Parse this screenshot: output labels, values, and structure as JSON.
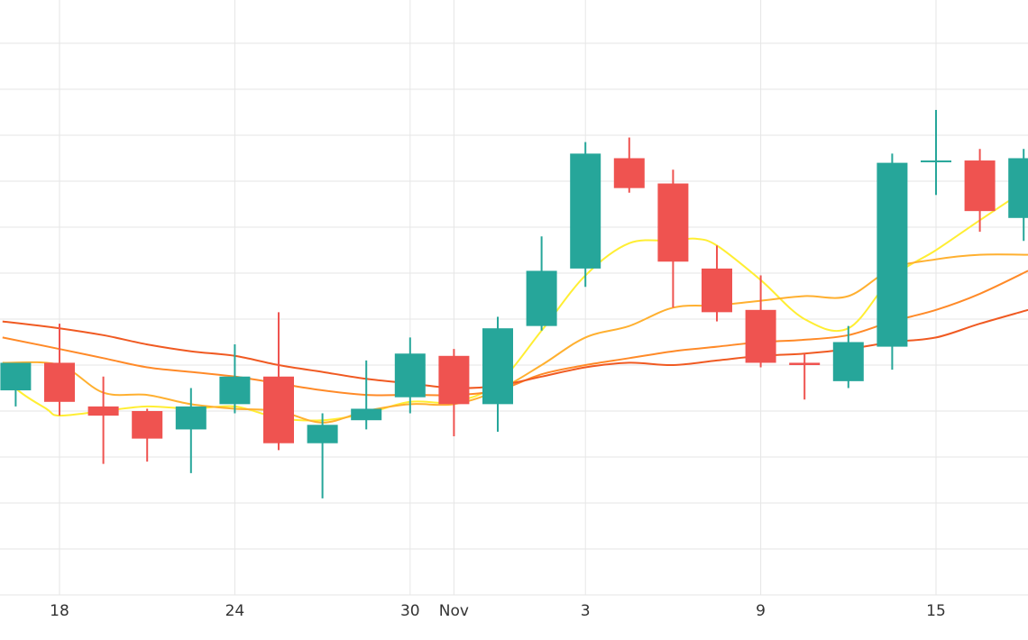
{
  "chart_data": {
    "type": "candlestick",
    "title": "",
    "xlabel": "",
    "ylabel": "",
    "grid": true,
    "colors": {
      "up": "#26a69a",
      "down": "#ef5350",
      "grid": "#e6e6e6",
      "ma": [
        "#ffee33",
        "#ffb030",
        "#ff8a28",
        "#f05a22"
      ]
    },
    "x_range": [
      -1.3,
      22.1
    ],
    "y_range": [
      0,
      13
    ],
    "x_ticks": [
      {
        "pos": 0,
        "label": "18"
      },
      {
        "pos": 4,
        "label": "24"
      },
      {
        "pos": 8,
        "label": "30"
      },
      {
        "pos": 9,
        "label": "Nov"
      },
      {
        "pos": 12,
        "label": "3"
      },
      {
        "pos": 16,
        "label": "9"
      },
      {
        "pos": 20,
        "label": "15"
      }
    ],
    "y_gridlines": [
      0,
      1,
      2,
      3,
      4,
      5,
      6,
      7,
      8,
      9,
      10,
      11,
      12
    ],
    "candles": [
      {
        "i": -1,
        "open": 4.45,
        "high": 5.0,
        "low": 4.1,
        "close": 5.05
      },
      {
        "i": 0,
        "open": 5.05,
        "high": 5.9,
        "low": 3.9,
        "close": 4.2
      },
      {
        "i": 1,
        "open": 4.1,
        "high": 4.75,
        "low": 2.85,
        "close": 3.9
      },
      {
        "i": 2,
        "open": 4.0,
        "high": 4.05,
        "low": 2.9,
        "close": 3.4
      },
      {
        "i": 3,
        "open": 3.6,
        "high": 4.5,
        "low": 2.65,
        "close": 4.1
      },
      {
        "i": 4,
        "open": 4.15,
        "high": 5.45,
        "low": 3.95,
        "close": 4.75
      },
      {
        "i": 5,
        "open": 4.75,
        "high": 6.15,
        "low": 3.15,
        "close": 3.3
      },
      {
        "i": 6,
        "open": 3.3,
        "high": 3.95,
        "low": 2.1,
        "close": 3.7
      },
      {
        "i": 7,
        "open": 3.8,
        "high": 5.1,
        "low": 3.6,
        "close": 4.05
      },
      {
        "i": 8,
        "open": 4.3,
        "high": 5.6,
        "low": 3.95,
        "close": 5.25
      },
      {
        "i": 9,
        "open": 5.2,
        "high": 5.35,
        "low": 3.45,
        "close": 4.15
      },
      {
        "i": 10,
        "open": 4.15,
        "high": 6.05,
        "low": 3.55,
        "close": 5.8
      },
      {
        "i": 11,
        "open": 5.85,
        "high": 7.8,
        "low": 5.75,
        "close": 7.05
      },
      {
        "i": 12,
        "open": 7.1,
        "high": 9.85,
        "low": 6.7,
        "close": 9.6
      },
      {
        "i": 13,
        "open": 9.5,
        "high": 9.95,
        "low": 8.75,
        "close": 8.85
      },
      {
        "i": 14,
        "open": 8.95,
        "high": 9.25,
        "low": 6.25,
        "close": 7.25
      },
      {
        "i": 15,
        "open": 7.1,
        "high": 7.6,
        "low": 5.95,
        "close": 6.15
      },
      {
        "i": 16,
        "open": 6.2,
        "high": 6.95,
        "low": 4.95,
        "close": 5.05
      },
      {
        "i": 17,
        "open": 5.05,
        "high": 5.25,
        "low": 4.25,
        "close": 5.0
      },
      {
        "i": 18,
        "open": 4.65,
        "high": 5.85,
        "low": 4.5,
        "close": 5.5
      },
      {
        "i": 19,
        "open": 5.4,
        "high": 9.6,
        "low": 4.9,
        "close": 9.4
      },
      {
        "i": 20,
        "open": 9.45,
        "high": 10.55,
        "low": 8.7,
        "close": 9.45
      },
      {
        "i": 21,
        "open": 9.45,
        "high": 9.7,
        "low": 7.9,
        "close": 8.35
      },
      {
        "i": 22,
        "open": 8.2,
        "high": 9.7,
        "low": 7.7,
        "close": 9.5
      }
    ],
    "moving_averages": [
      {
        "points": [
          [
            -1.3,
            5.05
          ],
          [
            -1,
            4.5
          ],
          [
            -0.3,
            4.05
          ],
          [
            0,
            3.9
          ],
          [
            1,
            4.0
          ],
          [
            2,
            4.1
          ],
          [
            3,
            4.05
          ],
          [
            4,
            4.1
          ],
          [
            5,
            3.85
          ],
          [
            6,
            3.8
          ],
          [
            7,
            3.95
          ],
          [
            8,
            4.2
          ],
          [
            9,
            4.2
          ],
          [
            10,
            4.6
          ],
          [
            11,
            5.75
          ],
          [
            12,
            6.95
          ],
          [
            13,
            7.65
          ],
          [
            14,
            7.7
          ],
          [
            14.5,
            7.75
          ],
          [
            15,
            7.6
          ],
          [
            16,
            6.85
          ],
          [
            17,
            6.0
          ],
          [
            18,
            5.8
          ],
          [
            19,
            6.9
          ],
          [
            20,
            7.5
          ],
          [
            21,
            8.15
          ],
          [
            22.1,
            8.85
          ]
        ]
      },
      {
        "points": [
          [
            -1.3,
            5.05
          ],
          [
            0,
            5.0
          ],
          [
            1,
            4.4
          ],
          [
            2,
            4.35
          ],
          [
            3,
            4.15
          ],
          [
            4,
            4.05
          ],
          [
            5,
            4.0
          ],
          [
            6,
            3.75
          ],
          [
            7,
            4.0
          ],
          [
            8,
            4.15
          ],
          [
            9,
            4.15
          ],
          [
            10,
            4.45
          ],
          [
            11,
            5.0
          ],
          [
            12,
            5.6
          ],
          [
            13,
            5.85
          ],
          [
            14,
            6.25
          ],
          [
            15,
            6.3
          ],
          [
            16,
            6.4
          ],
          [
            17,
            6.5
          ],
          [
            18,
            6.5
          ],
          [
            19,
            7.1
          ],
          [
            20,
            7.3
          ],
          [
            21,
            7.4
          ],
          [
            22.1,
            7.4
          ]
        ]
      },
      {
        "points": [
          [
            -1.3,
            5.6
          ],
          [
            0,
            5.35
          ],
          [
            1,
            5.15
          ],
          [
            2,
            4.95
          ],
          [
            3,
            4.85
          ],
          [
            4,
            4.75
          ],
          [
            5,
            4.6
          ],
          [
            6,
            4.45
          ],
          [
            7,
            4.35
          ],
          [
            8,
            4.35
          ],
          [
            9,
            4.35
          ],
          [
            10,
            4.45
          ],
          [
            11,
            4.8
          ],
          [
            12,
            5.0
          ],
          [
            13,
            5.15
          ],
          [
            14,
            5.3
          ],
          [
            15,
            5.4
          ],
          [
            16,
            5.5
          ],
          [
            17,
            5.55
          ],
          [
            18,
            5.65
          ],
          [
            19,
            5.95
          ],
          [
            20,
            6.2
          ],
          [
            21,
            6.55
          ],
          [
            22.1,
            7.05
          ]
        ]
      },
      {
        "points": [
          [
            -1.3,
            5.95
          ],
          [
            0,
            5.8
          ],
          [
            1,
            5.65
          ],
          [
            2,
            5.45
          ],
          [
            3,
            5.3
          ],
          [
            4,
            5.2
          ],
          [
            5,
            5.0
          ],
          [
            6,
            4.85
          ],
          [
            7,
            4.7
          ],
          [
            8,
            4.6
          ],
          [
            9,
            4.5
          ],
          [
            10,
            4.55
          ],
          [
            11,
            4.75
          ],
          [
            12,
            4.95
          ],
          [
            13,
            5.05
          ],
          [
            14,
            5.0
          ],
          [
            15,
            5.1
          ],
          [
            16,
            5.2
          ],
          [
            17,
            5.25
          ],
          [
            18,
            5.35
          ],
          [
            19,
            5.5
          ],
          [
            20,
            5.6
          ],
          [
            21,
            5.9
          ],
          [
            22.1,
            6.2
          ]
        ]
      }
    ]
  }
}
